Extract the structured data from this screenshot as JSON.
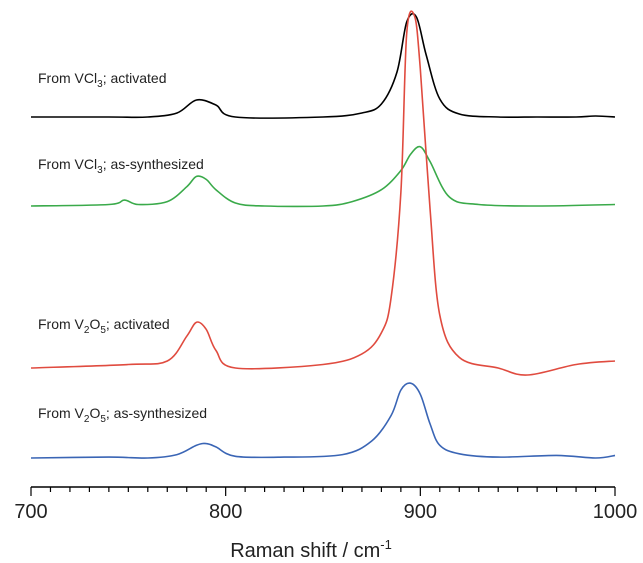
{
  "chart_data": {
    "type": "line",
    "xlabel": "Raman shift / cm",
    "xlabel_sup": "-1",
    "xlim": [
      700,
      1000
    ],
    "x_ticks": [
      700,
      800,
      900,
      1000
    ],
    "x_tick_labels": [
      "700",
      "800",
      "900",
      "1000"
    ],
    "y_axis": "none",
    "grid": false,
    "legend": "none",
    "series": [
      {
        "name": "From VCl3; activated",
        "label": {
          "pre": "From VCl",
          "sub": "3",
          "post": "; activated"
        },
        "color": "#000000",
        "offset": 3,
        "x": [
          700,
          740,
          760,
          775,
          785,
          795,
          805,
          850,
          870,
          880,
          888,
          893,
          898,
          903,
          910,
          920,
          940,
          960,
          980,
          990,
          1000
        ],
        "y": [
          0.0,
          0.0,
          0.0,
          0.04,
          0.17,
          0.12,
          0.0,
          0.0,
          0.04,
          0.13,
          0.45,
          0.95,
          1.0,
          0.62,
          0.18,
          0.03,
          0.0,
          0.0,
          0.0,
          0.01,
          0.0
        ]
      },
      {
        "name": "From VCl3; as-synthesized",
        "label": {
          "pre": "From VCl",
          "sub": "3",
          "post": "; as-synthesized"
        },
        "color": "#3aaa4a",
        "offset": 2,
        "x": [
          700,
          740,
          748,
          755,
          770,
          780,
          785,
          790,
          795,
          805,
          820,
          850,
          865,
          880,
          890,
          895,
          900,
          905,
          915,
          930,
          960,
          1000
        ],
        "y": [
          0.0,
          0.01,
          0.04,
          0.01,
          0.03,
          0.13,
          0.2,
          0.18,
          0.11,
          0.02,
          0.0,
          0.0,
          0.03,
          0.11,
          0.24,
          0.35,
          0.4,
          0.3,
          0.06,
          0.01,
          0.0,
          0.01
        ]
      },
      {
        "name": "From V2O5; activated",
        "label": {
          "pre": "From V",
          "sub": "2",
          "mid": "O",
          "sub2": "5",
          "post": "; activated"
        },
        "color": "#e04b3f",
        "offset": 1,
        "x": [
          700,
          750,
          770,
          780,
          785,
          790,
          795,
          805,
          850,
          870,
          880,
          885,
          890,
          893,
          897,
          900,
          905,
          910,
          920,
          940,
          955,
          980,
          1000
        ],
        "y": [
          0.0,
          0.01,
          0.02,
          0.09,
          0.13,
          0.11,
          0.05,
          0.0,
          0.01,
          0.04,
          0.1,
          0.2,
          0.5,
          0.95,
          1.0,
          0.85,
          0.45,
          0.15,
          0.03,
          0.0,
          -0.02,
          0.01,
          0.02
        ]
      },
      {
        "name": "From V2O5; as-synthesized",
        "label": {
          "pre": "From V",
          "sub": "2",
          "mid": "O",
          "sub2": "5",
          "post": "; as-synthesized"
        },
        "color": "#3a65b5",
        "offset": 0,
        "x": [
          700,
          740,
          760,
          775,
          785,
          790,
          795,
          805,
          830,
          860,
          875,
          885,
          890,
          895,
          900,
          905,
          910,
          920,
          940,
          970,
          990,
          1000
        ],
        "y": [
          0.0,
          0.01,
          0.0,
          0.04,
          0.15,
          0.17,
          0.13,
          0.02,
          0.01,
          0.04,
          0.2,
          0.5,
          0.8,
          0.88,
          0.75,
          0.4,
          0.15,
          0.05,
          0.01,
          0.03,
          0.0,
          0.03
        ]
      }
    ]
  }
}
